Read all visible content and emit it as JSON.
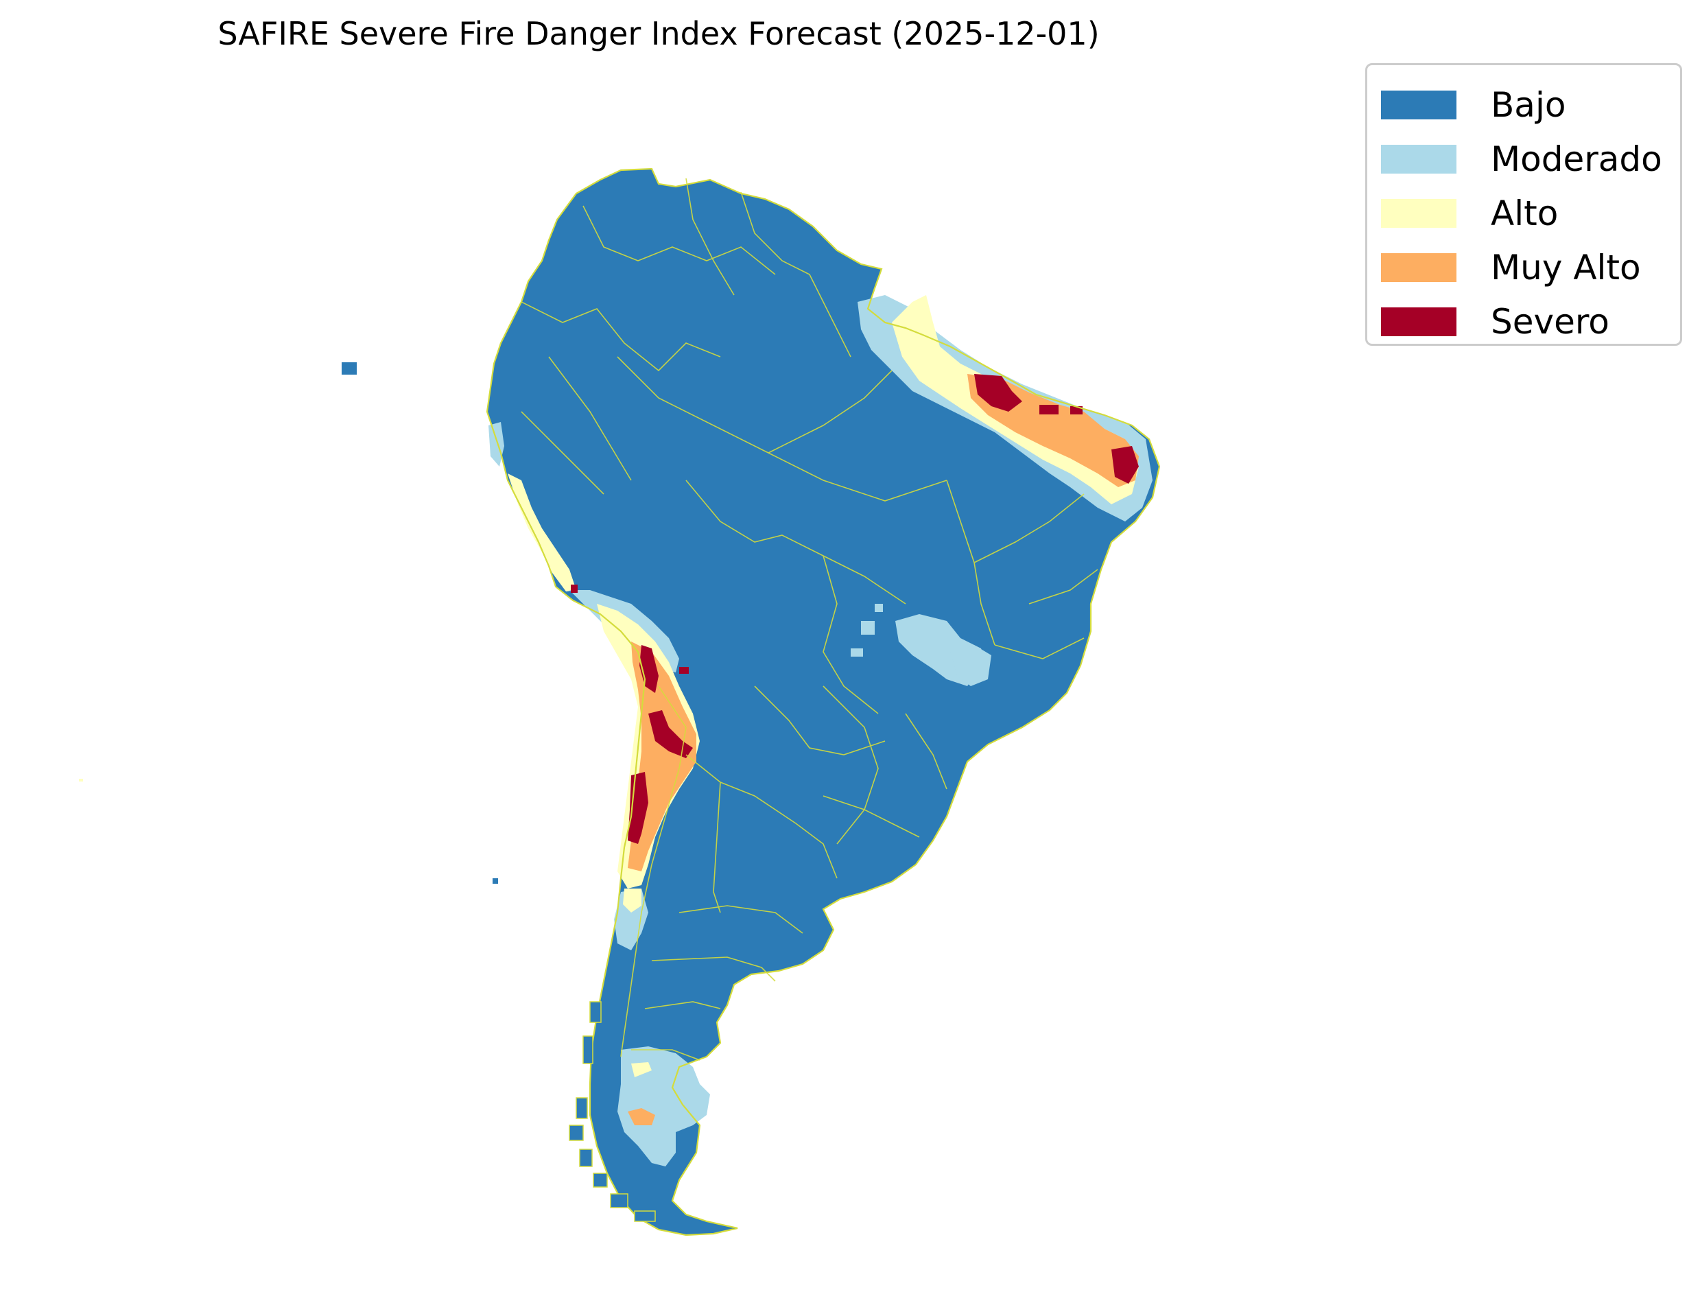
{
  "map": {
    "title": "SAFIRE Severe Fire Danger Index Forecast (2025-12-01)",
    "region": "South America",
    "background_color": "#ffffff",
    "border_color": "#d4dc3c"
  },
  "legend": {
    "placement": "top-right, outside map",
    "items": [
      {
        "label": "Bajo",
        "color": "#2c7bb6"
      },
      {
        "label": "Moderado",
        "color": "#abd9e9"
      },
      {
        "label": "Alto",
        "color": "#ffffbf"
      },
      {
        "label": "Muy Alto",
        "color": "#fdae61"
      },
      {
        "label": "Severo",
        "color": "#a50026"
      }
    ]
  }
}
